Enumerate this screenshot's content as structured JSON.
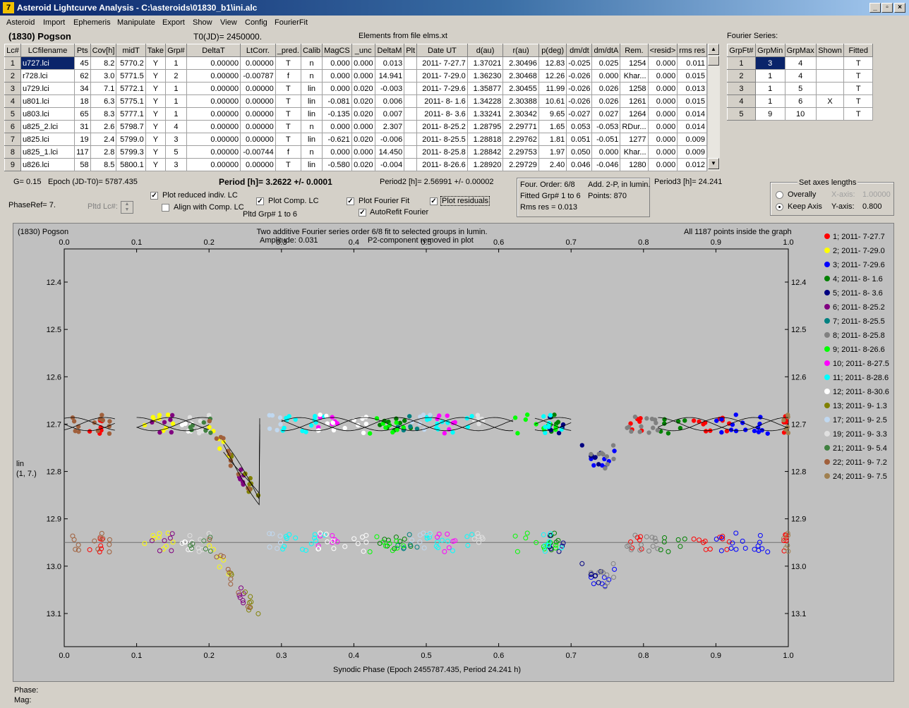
{
  "window": {
    "title": "Asteroid Lightcurve Analysis - C:\\asteroids\\01830_b1\\ini.alc",
    "minimize": "_",
    "restore": "▫",
    "close": "×"
  },
  "menu": [
    "Asteroid",
    "Import",
    "Ephemeris",
    "Manipulate",
    "Export",
    "Show",
    "View",
    "Config",
    "FourierFit"
  ],
  "header": {
    "object": "(1830) Pogson",
    "t0": "T0(JD)= 2450000.",
    "elements": "Elements from file elms.xt"
  },
  "lc_table": {
    "columns": [
      "Lc#",
      "LCfilename",
      "Pts",
      "Cov[h]",
      "midT",
      "Take",
      "Grp#",
      "DeltaT",
      "LtCorr.",
      "_pred.",
      "Calib",
      "MagCS",
      "_unc",
      "DeltaM",
      "Plt",
      "Date UT",
      "d(au)",
      "r(au)",
      "p(deg)",
      "dm/dt",
      "dm/dtA",
      "Rem.",
      "<resid>",
      "rms res"
    ],
    "rows": [
      [
        "1",
        "u727.lci",
        "45",
        "8.2",
        "5770.2",
        "Y",
        "1",
        "0.00000",
        "0.00000",
        "T",
        "n",
        "0.000",
        "0.000",
        "0.013",
        "",
        "2011- 7-27.7",
        "1.37021",
        "2.30496",
        "12.83",
        "-0.025",
        "0.025",
        "1254",
        "0.000",
        "0.011"
      ],
      [
        "2",
        "r728.lci",
        "62",
        "3.0",
        "5771.5",
        "Y",
        "2",
        "0.00000",
        "-0.00787",
        "f",
        "n",
        "0.000",
        "0.000",
        "14.941",
        "",
        "2011- 7-29.0",
        "1.36230",
        "2.30468",
        "12.26",
        "-0.026",
        "0.000",
        "Khar...",
        "0.000",
        "0.015"
      ],
      [
        "3",
        "u729.lci",
        "34",
        "7.1",
        "5772.1",
        "Y",
        "1",
        "0.00000",
        "0.00000",
        "T",
        "lin",
        "0.000",
        "0.020",
        "-0.003",
        "",
        "2011- 7-29.6",
        "1.35877",
        "2.30455",
        "11.99",
        "-0.026",
        "0.026",
        "1258",
        "0.000",
        "0.013"
      ],
      [
        "4",
        "u801.lci",
        "18",
        "6.3",
        "5775.1",
        "Y",
        "1",
        "0.00000",
        "0.00000",
        "T",
        "lin",
        "-0.081",
        "0.020",
        "0.006",
        "",
        "2011- 8- 1.6",
        "1.34228",
        "2.30388",
        "10.61",
        "-0.026",
        "0.026",
        "1261",
        "0.000",
        "0.015"
      ],
      [
        "5",
        "u803.lci",
        "65",
        "8.3",
        "5777.1",
        "Y",
        "1",
        "0.00000",
        "0.00000",
        "T",
        "lin",
        "-0.135",
        "0.020",
        "0.007",
        "",
        "2011- 8- 3.6",
        "1.33241",
        "2.30342",
        "9.65",
        "-0.027",
        "0.027",
        "1264",
        "0.000",
        "0.014"
      ],
      [
        "6",
        "u825_2.lci",
        "31",
        "2.6",
        "5798.7",
        "Y",
        "4",
        "0.00000",
        "0.00000",
        "T",
        "n",
        "0.000",
        "0.000",
        "2.307",
        "",
        "2011- 8-25.2",
        "1.28795",
        "2.29771",
        "1.65",
        "0.053",
        "-0.053",
        "RDur...",
        "0.000",
        "0.014"
      ],
      [
        "7",
        "u825.lci",
        "19",
        "2.4",
        "5799.0",
        "Y",
        "3",
        "0.00000",
        "0.00000",
        "T",
        "lin",
        "-0.621",
        "0.020",
        "-0.006",
        "",
        "2011- 8-25.5",
        "1.28818",
        "2.29762",
        "1.81",
        "0.051",
        "-0.051",
        "1277",
        "0.000",
        "0.009"
      ],
      [
        "8",
        "u825_1.lci",
        "117",
        "2.8",
        "5799.3",
        "Y",
        "5",
        "0.00000",
        "-0.00744",
        "f",
        "n",
        "0.000",
        "0.000",
        "14.450",
        "",
        "2011- 8-25.8",
        "1.28842",
        "2.29753",
        "1.97",
        "0.050",
        "0.000",
        "Khar...",
        "0.000",
        "0.009"
      ],
      [
        "9",
        "u826.lci",
        "58",
        "8.5",
        "5800.1",
        "Y",
        "3",
        "0.00000",
        "0.00000",
        "T",
        "lin",
        "-0.580",
        "0.020",
        "-0.004",
        "",
        "2011- 8-26.6",
        "1.28920",
        "2.29729",
        "2.40",
        "0.046",
        "-0.046",
        "1280",
        "0.000",
        "0.012"
      ]
    ]
  },
  "fourier_series": {
    "label": "Fourier Series:",
    "columns": [
      "GrpFt#",
      "GrpMin",
      "GrpMax",
      "Shown",
      "Fitted"
    ],
    "rows": [
      [
        "1",
        "3",
        "4",
        "",
        "T"
      ],
      [
        "2",
        "1",
        "4",
        "",
        "T"
      ],
      [
        "3",
        "1",
        "5",
        "",
        "T"
      ],
      [
        "4",
        "1",
        "6",
        "X",
        "T"
      ],
      [
        "5",
        "9",
        "10",
        "",
        "T"
      ]
    ]
  },
  "params": {
    "g": "G= 0.15",
    "epoch": "Epoch (JD-T0)= 5787.435",
    "period": "Period [h]= 3.2622 +/- 0.0001",
    "period2": "Period2 [h]= 2.56991 +/- 0.00002",
    "period3": "Period3 [h]= 24.241",
    "phaseref": "PhaseRef= 7.",
    "pltd_lc": "Pltd Lc#:",
    "pltd_grp": "Pltd Grp#  1   to   6"
  },
  "checks": {
    "reduced": "Plot reduced indiv. LC",
    "align": "Align with Comp. LC",
    "comp": "Plot Comp. LC",
    "fourier": "Plot Fourier Fit",
    "autorefit": "AutoRefit Fourier",
    "resid": "Plot residuals",
    "check": "✓"
  },
  "fitinfo": {
    "order": "Four. Order:  6/8",
    "add": "Add. 2-P, in lumin.",
    "fitted": "Fitted Grp# 1 to 6",
    "points": "Points: 870",
    "rms": "Rms res     = 0.013"
  },
  "axes": {
    "title": "Set axes lengths",
    "overally": "Overally",
    "keep": "Keep Axis",
    "xaxis": "X-axis:",
    "xval": "1.00000",
    "yaxis": "Y-axis:",
    "yval": "0.800"
  },
  "plot": {
    "name": "(1830) Pogson",
    "desc1": "Two additive Fourier series order 6/8 fit to selected groups in lumin.",
    "amplitude": "Amplitude: 0.031",
    "p2": "P2-component removed in plot",
    "inside": "All 1187 points inside the graph",
    "ylabel1": "lin",
    "ylabel2": "(1, 7.)",
    "xlabel": "Synodic Phase (Epoch 2455787.435, Period 24.241 h)",
    "phase": "Phase:",
    "mag": "Mag:"
  },
  "chart_data": {
    "type": "scatter",
    "title": "Two additive Fourier series order 6/8 fit to selected groups in lumin.",
    "xlabel": "Synodic Phase (Epoch 2455787.435, Period 24.241 h)",
    "ylabel": "lin (1, 7.)",
    "xlim": [
      0.0,
      1.0
    ],
    "ylim": [
      13.17,
      12.33
    ],
    "xticks": [
      "0.0",
      "0.1",
      "0.2",
      "0.3",
      "0.4",
      "0.5",
      "0.6",
      "0.7",
      "0.8",
      "0.9",
      "1.0"
    ],
    "yticks": [
      "12.4",
      "12.5",
      "12.6",
      "12.7",
      "12.8",
      "12.9",
      "13.0",
      "13.1"
    ],
    "residual_offset": 0.25,
    "series": [
      {
        "name": "1; 2011- 7-27.7",
        "color": "#ff0000",
        "ranges": [
          [
            0.03,
            0.06
          ],
          [
            0.78,
            0.8
          ],
          [
            0.86,
            0.92
          ],
          [
            0.99,
            1.0
          ]
        ]
      },
      {
        "name": "2; 2011- 7-29.0",
        "color": "#ffff00",
        "ranges": [
          [
            0.11,
            0.16
          ],
          [
            0.2,
            0.23
          ]
        ]
      },
      {
        "name": "3; 2011- 7-29.6",
        "color": "#0000ff",
        "ranges": [
          [
            0.72,
            0.76
          ],
          [
            0.9,
            0.99
          ]
        ]
      },
      {
        "name": "4; 2011- 8- 1.6",
        "color": "#008000",
        "ranges": [
          [
            0.43,
            0.48
          ],
          [
            0.67,
            0.69
          ],
          [
            0.82,
            0.86
          ]
        ]
      },
      {
        "name": "5; 2011- 8- 3.6",
        "color": "#000080",
        "ranges": [
          [
            0.66,
            0.7
          ],
          [
            0.71,
            0.75
          ]
        ]
      },
      {
        "name": "6; 2011- 8-25.2",
        "color": "#800080",
        "ranges": [
          [
            0.12,
            0.15
          ],
          [
            0.24,
            0.25
          ]
        ]
      },
      {
        "name": "7; 2011- 8-25.5",
        "color": "#008080",
        "ranges": [
          [
            0.46,
            0.49
          ]
        ]
      },
      {
        "name": "8; 2011- 8-25.8",
        "color": "#808080",
        "ranges": [
          [
            0.72,
            0.84
          ]
        ]
      },
      {
        "name": "9; 2011- 8-26.6",
        "color": "#00ff00",
        "ranges": [
          [
            0.42,
            0.47
          ],
          [
            0.62,
            0.68
          ]
        ]
      },
      {
        "name": "10; 2011- 8-27.5",
        "color": "#ff00ff",
        "ranges": [
          [
            0.35,
            0.38
          ],
          [
            0.5,
            0.54
          ]
        ]
      },
      {
        "name": "11; 2011- 8-28.6",
        "color": "#00ffff",
        "ranges": [
          [
            0.3,
            0.37
          ],
          [
            0.5,
            0.57
          ],
          [
            0.65,
            0.69
          ]
        ]
      },
      {
        "name": "12; 2011- 8-30.6",
        "color": "#ffffff",
        "ranges": [
          [
            0.16,
            0.18
          ],
          [
            0.34,
            0.42
          ]
        ]
      },
      {
        "name": "13; 2011- 9- 1.3",
        "color": "#808000",
        "ranges": [
          [
            0.22,
            0.27
          ]
        ]
      },
      {
        "name": "17; 2011- 9- 2.5",
        "color": "#c0d8f0",
        "ranges": [
          [
            0.27,
            0.3
          ],
          [
            0.48,
            0.51
          ]
        ]
      },
      {
        "name": "19; 2011- 9- 3.3",
        "color": "#e0e0e0",
        "ranges": [
          [
            0.17,
            0.22
          ],
          [
            0.56,
            0.58
          ]
        ]
      },
      {
        "name": "21; 2011- 9- 5.4",
        "color": "#408040",
        "ranges": [
          [
            0.17,
            0.21
          ]
        ]
      },
      {
        "name": "22; 2011- 9- 7.2",
        "color": "#a0603c",
        "ranges": [
          [
            0.0,
            0.07
          ],
          [
            0.2,
            0.26
          ]
        ]
      },
      {
        "name": "24; 2011- 9- 7.5",
        "color": "#a08050",
        "ranges": [
          [
            0.99,
            1.0
          ]
        ]
      }
    ]
  }
}
